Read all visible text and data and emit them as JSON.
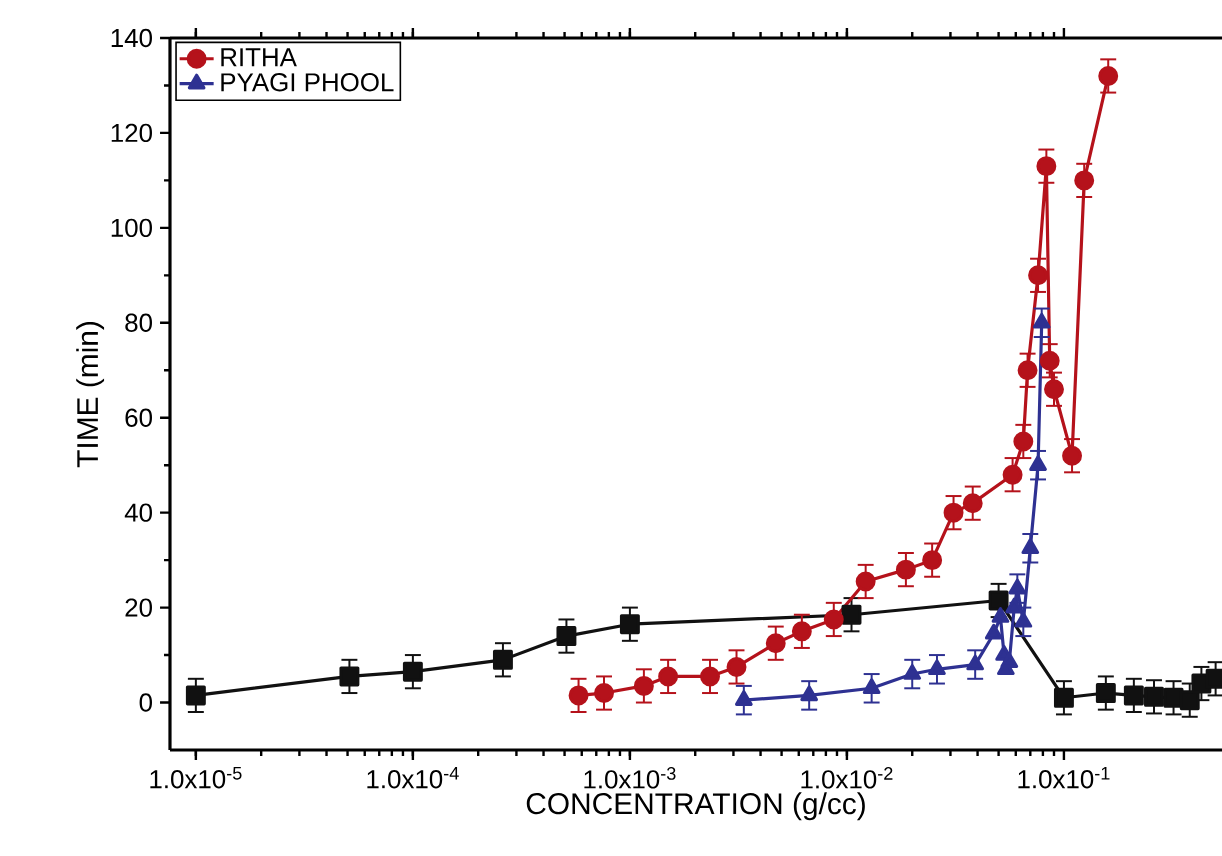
{
  "chart_data": {
    "type": "line",
    "xlabel": "CONCENTRATION (g/cc)",
    "ylabel": "TIME (min)",
    "log": "x",
    "legend": "top left",
    "xlim": [
      7.6e-06,
      0.535
    ],
    "ylim": [
      -10,
      140
    ],
    "xticks": [
      {
        "value": 1e-05,
        "label": "1.0x10$^{-5}$"
      },
      {
        "value": 0.0001,
        "label": "1.0x10$^{-4}$"
      },
      {
        "value": 0.001,
        "label": "1.0x10$^{-3}$"
      },
      {
        "value": 0.01,
        "label": "1.0x10$^{-2}$"
      },
      {
        "value": 0.1,
        "label": "1.0x10$^{-1}$"
      }
    ],
    "yticks": [
      0,
      20,
      40,
      60,
      80,
      100,
      120,
      140
    ],
    "series": [
      {
        "color": "#111111",
        "marker": "square",
        "x": [
          1e-05,
          5.1e-05,
          0.0001,
          0.00026,
          0.00051,
          0.001,
          0.0105,
          0.05,
          0.1,
          0.156,
          0.21,
          0.26,
          0.32,
          0.38,
          0.43,
          0.5
        ],
        "values": [
          1.5,
          5.5,
          6.5,
          9,
          14,
          16.5,
          18.5,
          21.5,
          1,
          2,
          1.5,
          1.2,
          1,
          0.5,
          4,
          5
        ],
        "errors": [
          3.5,
          3.5,
          3.5,
          3.5,
          3.5,
          3.5,
          3.5,
          3.5,
          3.5,
          3.5,
          3.5,
          3.5,
          3.5,
          3.5,
          3.5,
          3.5
        ]
      },
      {
        "name": "RITHA",
        "color": "#b5121b",
        "marker": "circle",
        "x": [
          0.00058,
          0.00076,
          0.00116,
          0.0015,
          0.00234,
          0.0031,
          0.0047,
          0.0062,
          0.0087,
          0.0122,
          0.0187,
          0.0247,
          0.031,
          0.038,
          0.058,
          0.065,
          0.068,
          0.076,
          0.083,
          0.086,
          0.09,
          0.109,
          0.124,
          0.16
        ],
        "values": [
          1.5,
          2,
          3.5,
          5.5,
          5.5,
          7.5,
          12.5,
          15,
          17.5,
          25.5,
          28,
          30,
          40,
          42,
          48,
          55,
          70,
          90,
          113,
          72,
          66,
          52,
          110,
          132
        ],
        "errors": [
          3.5,
          3.5,
          3.5,
          3.5,
          3.5,
          3.5,
          3.5,
          3.5,
          3.5,
          3.5,
          3.5,
          3.5,
          3.5,
          3.5,
          3.5,
          3.5,
          3.5,
          3.5,
          3.5,
          3.5,
          3.5,
          3.5,
          3.5,
          3.5
        ]
      },
      {
        "name": "PYAGI PHOOL",
        "color": "#2e3192",
        "marker": "triangle",
        "x": [
          0.00335,
          0.0067,
          0.013,
          0.02,
          0.026,
          0.039,
          0.0475,
          0.051,
          0.053,
          0.054,
          0.056,
          0.059,
          0.061,
          0.065,
          0.07,
          0.076,
          0.079
        ],
        "values": [
          0.5,
          1.5,
          3,
          6,
          7,
          8,
          14.5,
          18,
          10,
          7,
          8.5,
          20,
          24,
          17,
          32.5,
          50,
          80
        ],
        "errors": [
          3,
          3,
          3,
          3,
          3,
          3,
          null,
          null,
          null,
          null,
          null,
          null,
          3,
          3,
          3,
          3,
          3
        ]
      }
    ]
  }
}
